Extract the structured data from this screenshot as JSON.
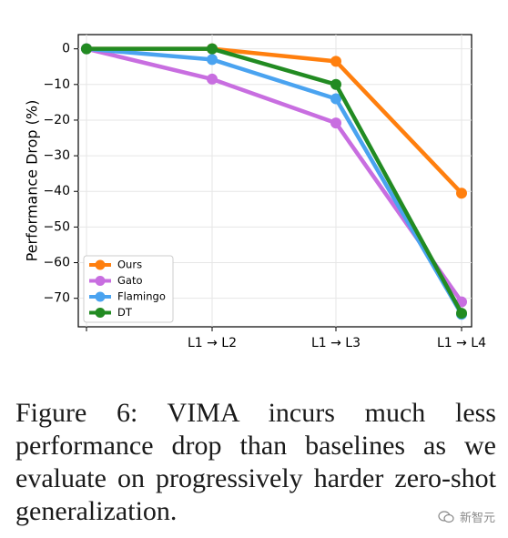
{
  "chart_data": {
    "type": "line",
    "title": "",
    "xlabel": "",
    "ylabel": "Performance Drop (%)",
    "categories": [
      "",
      "L1 → L2",
      "L1 → L3",
      "L1 → L4"
    ],
    "ylim": [
      -78,
      4
    ],
    "yticks": [
      0,
      -10,
      -20,
      -30,
      -40,
      -50,
      -60,
      -70
    ],
    "ytick_labels": [
      "0",
      "−10",
      "−20",
      "−30",
      "−40",
      "−50",
      "−60",
      "−70"
    ],
    "grid": true,
    "legend_position": "lower-left",
    "series": [
      {
        "name": "Ours",
        "color": "#ff7f0e",
        "values": [
          0,
          0,
          -3.5,
          -40.5
        ]
      },
      {
        "name": "Gato",
        "color": "#c86ee0",
        "values": [
          0,
          -8.5,
          -20.8,
          -71
        ]
      },
      {
        "name": "Flamingo",
        "color": "#4aa3f0",
        "values": [
          0,
          -3,
          -14,
          -74.5
        ]
      },
      {
        "name": "DT",
        "color": "#228b22",
        "values": [
          0,
          0,
          -10,
          -74.2
        ]
      }
    ]
  },
  "caption": "Figure 6: VIMA incurs much less performance drop than baselines as we evaluate on progressively harder zero-shot generalization.",
  "watermark": {
    "text": "新智元",
    "icon": "wechat-icon"
  }
}
